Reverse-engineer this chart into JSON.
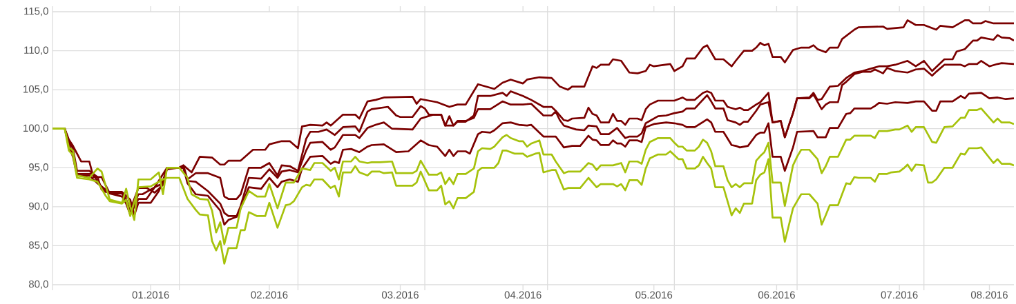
{
  "chart_data": {
    "type": "line",
    "grid": true,
    "xlim": [
      "2016-01-01",
      "2016-08-23"
    ],
    "ylim": [
      80,
      115
    ],
    "yticks": [
      {
        "value": 80,
        "label": "80,0"
      },
      {
        "value": 85,
        "label": "85,0"
      },
      {
        "value": 90,
        "label": "90,0"
      },
      {
        "value": 95,
        "label": "95,0"
      },
      {
        "value": 100,
        "label": "100,0"
      },
      {
        "value": 105,
        "label": "105,0"
      },
      {
        "value": 110,
        "label": "110,0"
      },
      {
        "value": 115,
        "label": "115,0"
      }
    ],
    "xticks": [
      {
        "value": "2016-01-01",
        "label": null
      },
      {
        "value": "2016-02-01",
        "label": null
      },
      {
        "value": "2016-03-01",
        "label": null
      },
      {
        "value": "2016-04-01",
        "label": null
      },
      {
        "value": "2016-05-01",
        "label": null
      },
      {
        "value": "2016-06-01",
        "label": null
      },
      {
        "value": "2016-07-01",
        "label": null
      },
      {
        "value": "2016-08-01",
        "label": null
      },
      {
        "value": "2016-01-25",
        "label": "01.2016"
      },
      {
        "value": "2016-02-23",
        "label": "02.2016"
      },
      {
        "value": "2016-03-26",
        "label": "03.2016"
      },
      {
        "value": "2016-04-25",
        "label": "04.2016"
      },
      {
        "value": "2016-05-27",
        "label": "05.2016"
      },
      {
        "value": "2016-06-26",
        "label": "06.2016"
      },
      {
        "value": "2016-07-26",
        "label": "07.2016"
      },
      {
        "value": "2016-08-17",
        "label": "08.2016"
      }
    ],
    "series": [
      {
        "color": "#7b0000",
        "x": [
          "2016-01-01",
          "2016-01-04",
          "2016-01-05",
          "2016-01-06",
          "2016-01-08",
          "2016-01-10",
          "2016-01-11",
          "2016-01-13",
          "2016-01-15",
          "2016-01-18",
          "2016-01-19",
          "2016-01-20",
          "2016-01-22",
          "2016-01-24",
          "2016-01-26",
          "2016-01-28",
          "2016-01-29",
          "2016-02-01",
          "2016-02-02",
          "2016-02-04",
          "2016-02-06",
          "2016-02-09",
          "2016-02-11",
          "2016-02-12",
          "2016-02-13",
          "2016-02-16",
          "2016-02-19",
          "2016-02-22",
          "2016-02-23",
          "2016-02-26",
          "2016-02-28",
          "2016-03-01",
          "2016-03-02",
          "2016-03-04",
          "2016-03-07",
          "2016-03-08",
          "2016-03-09",
          "2016-03-12",
          "2016-03-15",
          "2016-03-16",
          "2016-03-18",
          "2016-03-20",
          "2016-03-22",
          "2016-03-29",
          "2016-03-30",
          "2016-03-31",
          "2016-04-04",
          "2016-04-07",
          "2016-04-09",
          "2016-04-11",
          "2016-04-14",
          "2016-04-16",
          "2016-04-18",
          "2016-04-20",
          "2016-04-22",
          "2016-04-25",
          "2016-04-26",
          "2016-04-29",
          "2016-05-02",
          "2016-05-04",
          "2016-05-06",
          "2016-05-07",
          "2016-05-10",
          "2016-05-12",
          "2016-05-13",
          "2016-05-14",
          "2016-05-16",
          "2016-05-17",
          "2016-05-19",
          "2016-05-21",
          "2016-05-23",
          "2016-05-25",
          "2016-05-26",
          "2016-05-27",
          "2016-05-31",
          "2016-06-01",
          "2016-06-03",
          "2016-06-04",
          "2016-06-06",
          "2016-06-08",
          "2016-06-09",
          "2016-06-11",
          "2016-06-13",
          "2016-06-15",
          "2016-06-16",
          "2016-06-18",
          "2016-06-20",
          "2016-06-21",
          "2016-06-22",
          "2016-06-23",
          "2016-06-24",
          "2016-06-25",
          "2016-06-27",
          "2016-06-28",
          "2016-06-30",
          "2016-07-02",
          "2016-07-04",
          "2016-07-05",
          "2016-07-06",
          "2016-07-08",
          "2016-07-09",
          "2016-07-11",
          "2016-07-12",
          "2016-07-15",
          "2016-07-16",
          "2016-07-22",
          "2016-07-23",
          "2016-07-27",
          "2016-07-28",
          "2016-07-30",
          "2016-08-01",
          "2016-08-02",
          "2016-08-04",
          "2016-08-05",
          "2016-08-08",
          "2016-08-11",
          "2016-08-12",
          "2016-08-13",
          "2016-08-15",
          "2016-08-16",
          "2016-08-18",
          "2016-08-23"
        ],
        "values": [
          100,
          100,
          98.6,
          97.8,
          95.8,
          95.8,
          93.8,
          93.8,
          91.7,
          91.7,
          90.8,
          89.6,
          92.4,
          92.4,
          91.8,
          92.8,
          95.0,
          95.0,
          95.3,
          94.4,
          96.4,
          96.3,
          95.4,
          95.4,
          95.9,
          95.9,
          97.3,
          97.3,
          98.0,
          98.4,
          98.4,
          97.5,
          100.3,
          100.5,
          100.4,
          100.8,
          100.4,
          101.8,
          101.8,
          101.3,
          103.5,
          103.7,
          104.0,
          104.1,
          103.2,
          103.8,
          103.4,
          102.8,
          103.1,
          103.1,
          105.7,
          105.4,
          105.1,
          105.9,
          106.3,
          105.8,
          106.3,
          106.6,
          106.5,
          105.4,
          105.0,
          105.4,
          105.4,
          108.0,
          107.8,
          108.2,
          108.2,
          108.9,
          108.7,
          107.2,
          107.1,
          107.4,
          108.2,
          108.0,
          108.3,
          107.4,
          108.0,
          109.0,
          109.0,
          110.4,
          110.7,
          108.9,
          108.9,
          108.0,
          108.7,
          110.0,
          110.0,
          110.4,
          111.0,
          110.7,
          110.9,
          109.2,
          109.2,
          108.5,
          110.1,
          110.4,
          110.4,
          110.7,
          110.2,
          109.8,
          110.4,
          110.4,
          111.5,
          112.7,
          113.0,
          113.1,
          112.8,
          113.0,
          113.9,
          113.3,
          113.3,
          113.1,
          112.7,
          113.2,
          113.0,
          113.9,
          113.9,
          113.5,
          113.5,
          113.8,
          113.5,
          113.5
        ]
      },
      {
        "color": "#7b0000",
        "x": [
          "2016-01-01",
          "2016-01-04",
          "2016-01-05",
          "2016-01-06",
          "2016-01-07",
          "2016-01-10",
          "2016-01-12",
          "2016-01-13",
          "2016-01-15",
          "2016-01-18",
          "2016-01-19",
          "2016-01-20",
          "2016-01-22",
          "2016-01-23",
          "2016-01-26",
          "2016-01-28",
          "2016-01-29",
          "2016-02-01",
          "2016-02-02",
          "2016-02-03",
          "2016-02-05",
          "2016-02-08",
          "2016-02-11",
          "2016-02-12",
          "2016-02-13",
          "2016-02-15",
          "2016-02-16",
          "2016-02-18",
          "2016-02-21",
          "2016-02-23",
          "2016-02-25",
          "2016-02-26",
          "2016-02-28",
          "2016-03-01",
          "2016-03-03",
          "2016-03-04",
          "2016-03-06",
          "2016-03-08",
          "2016-03-10",
          "2016-03-12",
          "2016-03-15",
          "2016-03-16",
          "2016-03-18",
          "2016-03-19",
          "2016-03-23",
          "2016-03-25",
          "2016-03-26",
          "2016-03-29",
          "2016-03-31",
          "2016-04-01",
          "2016-04-02",
          "2016-04-05",
          "2016-04-06",
          "2016-04-07",
          "2016-04-08",
          "2016-04-09",
          "2016-04-11",
          "2016-04-13",
          "2016-04-14",
          "2016-04-17",
          "2016-04-20",
          "2016-04-21",
          "2016-04-22",
          "2016-04-25",
          "2016-04-27",
          "2016-04-30",
          "2016-05-02",
          "2016-05-03",
          "2016-05-05",
          "2016-05-06",
          "2016-05-07",
          "2016-05-10",
          "2016-05-11",
          "2016-05-12",
          "2016-05-13",
          "2016-05-14",
          "2016-05-16",
          "2016-05-17",
          "2016-05-18",
          "2016-05-19",
          "2016-05-20",
          "2016-05-21",
          "2016-05-23",
          "2016-05-24",
          "2016-05-25",
          "2016-05-26",
          "2016-05-28",
          "2016-06-01",
          "2016-06-03",
          "2016-06-04",
          "2016-06-06",
          "2016-06-08",
          "2016-06-09",
          "2016-06-10",
          "2016-06-11",
          "2016-06-13",
          "2016-06-14",
          "2016-06-16",
          "2016-06-17",
          "2016-06-18",
          "2016-06-19",
          "2016-06-21",
          "2016-06-22",
          "2016-06-24",
          "2016-06-25",
          "2016-06-27",
          "2016-06-28",
          "2016-06-30",
          "2016-07-01",
          "2016-07-04",
          "2016-07-05",
          "2016-07-06",
          "2016-07-07",
          "2016-07-09",
          "2016-07-11",
          "2016-07-13",
          "2016-07-15",
          "2016-07-17",
          "2016-07-19",
          "2016-07-21",
          "2016-07-23",
          "2016-07-25",
          "2016-07-28",
          "2016-07-30",
          "2016-08-01",
          "2016-08-03",
          "2016-08-06",
          "2016-08-08",
          "2016-08-09",
          "2016-08-11",
          "2016-08-13",
          "2016-08-14",
          "2016-08-15",
          "2016-08-18",
          "2016-08-19",
          "2016-08-20",
          "2016-08-22",
          "2016-08-23"
        ],
        "values": [
          100,
          100,
          98.3,
          97.5,
          94.6,
          94.6,
          93.8,
          92.2,
          91.7,
          91.7,
          91.0,
          89.1,
          91.6,
          91.6,
          92.5,
          93.0,
          95.0,
          95.0,
          95.3,
          93.5,
          94.3,
          94.3,
          93.7,
          91.3,
          91.0,
          91.0,
          91.6,
          95.0,
          95.0,
          95.6,
          94.0,
          95.3,
          95.2,
          94.6,
          98.7,
          99.6,
          99.6,
          99.9,
          99.2,
          100.2,
          100.3,
          99.6,
          102.2,
          102.5,
          102.8,
          101.7,
          101.5,
          101.5,
          102.9,
          102.6,
          101.8,
          101.8,
          100.4,
          101.6,
          100.4,
          100.9,
          100.9,
          101.7,
          104.2,
          104.2,
          104.6,
          104.2,
          104.8,
          104.2,
          103.7,
          102.8,
          102.8,
          102.3,
          101.1,
          101.0,
          101.3,
          101.4,
          102.7,
          101.9,
          101.7,
          100.8,
          100.8,
          101.9,
          101.0,
          101.0,
          100.5,
          101.3,
          101.3,
          101.1,
          102.5,
          103.1,
          103.6,
          103.6,
          104.0,
          103.7,
          103.7,
          104.6,
          104.8,
          104.6,
          103.6,
          103.6,
          102.8,
          102.5,
          102.7,
          102.4,
          102.4,
          103.1,
          103.4,
          104.6,
          100.8,
          101.0,
          98.9,
          102.0,
          103.9,
          104.0,
          104.6,
          103.7,
          103.8,
          105.4,
          105.5,
          106.5,
          107.2,
          107.4,
          107.7,
          108.0,
          108.0,
          108.2,
          108.7,
          108.0,
          108.7,
          107.4,
          108.9,
          108.9,
          109.9,
          110.2,
          111.3,
          111.3,
          111.7,
          111.4,
          112.0,
          111.7,
          111.6,
          111.3
        ]
      },
      {
        "color": "#7b0000",
        "x": [
          "2016-01-01",
          "2016-01-04",
          "2016-01-05",
          "2016-01-06",
          "2016-01-07",
          "2016-01-11",
          "2016-01-12",
          "2016-01-14",
          "2016-01-18",
          "2016-01-20",
          "2016-01-21",
          "2016-01-22",
          "2016-01-25",
          "2016-01-27",
          "2016-01-29",
          "2016-02-01",
          "2016-02-02",
          "2016-02-03",
          "2016-02-05",
          "2016-02-08",
          "2016-02-11",
          "2016-02-12",
          "2016-02-13",
          "2016-02-15",
          "2016-02-16",
          "2016-02-18",
          "2016-02-21",
          "2016-02-23",
          "2016-02-25",
          "2016-02-26",
          "2016-02-28",
          "2016-03-01",
          "2016-03-03",
          "2016-03-04",
          "2016-03-07",
          "2016-03-09",
          "2016-03-10",
          "2016-03-12",
          "2016-03-15",
          "2016-03-16",
          "2016-03-18",
          "2016-03-20",
          "2016-03-22",
          "2016-03-24",
          "2016-03-29",
          "2016-03-31",
          "2016-04-03",
          "2016-04-05",
          "2016-04-06",
          "2016-04-08",
          "2016-04-09",
          "2016-04-11",
          "2016-04-13",
          "2016-04-14",
          "2016-04-17",
          "2016-04-20",
          "2016-04-22",
          "2016-04-25",
          "2016-04-27",
          "2016-04-30",
          "2016-05-02",
          "2016-05-03",
          "2016-05-04",
          "2016-05-05",
          "2016-05-08",
          "2016-05-10",
          "2016-05-11",
          "2016-05-13",
          "2016-05-14",
          "2016-05-16",
          "2016-05-18",
          "2016-05-20",
          "2016-05-21",
          "2016-05-23",
          "2016-05-24",
          "2016-05-25",
          "2016-05-28",
          "2016-05-30",
          "2016-06-01",
          "2016-06-03",
          "2016-06-04",
          "2016-06-06",
          "2016-06-09",
          "2016-06-10",
          "2016-06-11",
          "2016-06-13",
          "2016-06-14",
          "2016-06-16",
          "2016-06-17",
          "2016-06-18",
          "2016-06-19",
          "2016-06-21",
          "2016-06-22",
          "2016-06-24",
          "2016-06-25",
          "2016-06-27",
          "2016-06-28",
          "2016-06-30",
          "2016-07-01",
          "2016-07-04",
          "2016-07-05",
          "2016-07-07",
          "2016-07-08",
          "2016-07-09",
          "2016-07-11",
          "2016-07-12",
          "2016-07-13",
          "2016-07-15",
          "2016-07-17",
          "2016-07-19",
          "2016-07-20",
          "2016-07-22",
          "2016-07-23",
          "2016-07-25",
          "2016-07-28",
          "2016-07-30",
          "2016-08-01",
          "2016-08-03",
          "2016-08-04",
          "2016-08-06",
          "2016-08-10",
          "2016-08-11",
          "2016-08-12",
          "2016-08-14",
          "2016-08-15",
          "2016-08-17",
          "2016-08-19",
          "2016-08-20",
          "2016-08-23"
        ],
        "values": [
          100,
          100,
          98.0,
          96.8,
          94.2,
          94.2,
          93.2,
          91.9,
          91.9,
          90.9,
          88.9,
          90.5,
          90.5,
          92.0,
          94.8,
          95.0,
          95.0,
          93.3,
          93.2,
          92.0,
          90.4,
          89.2,
          88.8,
          88.8,
          90.1,
          93.7,
          93.6,
          94.8,
          93.7,
          94.5,
          94.7,
          94.4,
          97.2,
          98.2,
          98.3,
          97.3,
          97.6,
          99.2,
          99.2,
          98.8,
          100.1,
          100.5,
          100.8,
          100.0,
          99.9,
          101.3,
          101.8,
          101.8,
          100.4,
          100.4,
          101.0,
          101.0,
          101.4,
          102.5,
          102.5,
          103.5,
          103.1,
          103.1,
          103.2,
          101.7,
          101.7,
          102.2,
          101.1,
          100.4,
          99.9,
          99.8,
          100.4,
          100.3,
          99.3,
          99.3,
          100.1,
          98.8,
          99.0,
          99.0,
          99.4,
          100.7,
          101.6,
          101.7,
          102.0,
          102.2,
          102.6,
          102.6,
          104.3,
          103.5,
          102.6,
          102.6,
          101.1,
          100.8,
          100.5,
          100.9,
          100.9,
          102.3,
          103.1,
          103.4,
          100.8,
          101.0,
          98.9,
          102.0,
          103.9,
          103.9,
          104.4,
          102.5,
          103.1,
          103.4,
          103.4,
          105.6,
          106.0,
          107.0,
          107.3,
          107.3,
          107.6,
          107.1,
          107.8,
          107.4,
          107.2,
          107.6,
          107.7,
          106.8,
          107.3,
          108.2,
          108.2,
          108.0,
          108.3,
          108.3,
          108.7,
          108.0,
          108.3,
          108.4,
          108.3
        ]
      },
      {
        "color": "#7b0000",
        "x": [
          "2016-01-01",
          "2016-01-04",
          "2016-01-05",
          "2016-01-06",
          "2016-01-07",
          "2016-01-10",
          "2016-01-12",
          "2016-01-14",
          "2016-01-15",
          "2016-01-18",
          "2016-01-19",
          "2016-01-20",
          "2016-01-22",
          "2016-01-24",
          "2016-01-26",
          "2016-01-29",
          "2016-02-01",
          "2016-02-02",
          "2016-02-03",
          "2016-02-05",
          "2016-02-08",
          "2016-02-11",
          "2016-02-12",
          "2016-02-13",
          "2016-02-15",
          "2016-02-16",
          "2016-02-18",
          "2016-02-21",
          "2016-02-23",
          "2016-02-25",
          "2016-02-26",
          "2016-02-28",
          "2016-03-01",
          "2016-03-02",
          "2016-03-04",
          "2016-03-07",
          "2016-03-09",
          "2016-03-10",
          "2016-03-11",
          "2016-03-12",
          "2016-03-14",
          "2016-03-16",
          "2016-03-18",
          "2016-03-19",
          "2016-03-22",
          "2016-03-25",
          "2016-03-28",
          "2016-03-31",
          "2016-04-02",
          "2016-04-04",
          "2016-04-06",
          "2016-04-07",
          "2016-04-08",
          "2016-04-09",
          "2016-04-11",
          "2016-04-12",
          "2016-04-14",
          "2016-04-15",
          "2016-04-17",
          "2016-04-18",
          "2016-04-20",
          "2016-04-22",
          "2016-04-24",
          "2016-04-26",
          "2016-04-27",
          "2016-04-30",
          "2016-05-02",
          "2016-05-03",
          "2016-05-05",
          "2016-05-07",
          "2016-05-09",
          "2016-05-11",
          "2016-05-12",
          "2016-05-13",
          "2016-05-14",
          "2016-05-16",
          "2016-05-17",
          "2016-05-18",
          "2016-05-19",
          "2016-05-20",
          "2016-05-21",
          "2016-05-23",
          "2016-05-24",
          "2016-05-25",
          "2016-05-27",
          "2016-05-30",
          "2016-06-01",
          "2016-06-03",
          "2016-06-04",
          "2016-06-06",
          "2016-06-09",
          "2016-06-10",
          "2016-06-11",
          "2016-06-13",
          "2016-06-15",
          "2016-06-16",
          "2016-06-17",
          "2016-06-19",
          "2016-06-21",
          "2016-06-22",
          "2016-06-23",
          "2016-06-24",
          "2016-06-25",
          "2016-06-27",
          "2016-06-28",
          "2016-06-30",
          "2016-07-01",
          "2016-07-05",
          "2016-07-06",
          "2016-07-08",
          "2016-07-09",
          "2016-07-11",
          "2016-07-13",
          "2016-07-14",
          "2016-07-15",
          "2016-07-19",
          "2016-07-20",
          "2016-07-21",
          "2016-07-23",
          "2016-07-25",
          "2016-07-28",
          "2016-07-30",
          "2016-08-01",
          "2016-08-03",
          "2016-08-04",
          "2016-08-05",
          "2016-08-08",
          "2016-08-10",
          "2016-08-11",
          "2016-08-12",
          "2016-08-15",
          "2016-08-17",
          "2016-08-19",
          "2016-08-21",
          "2016-08-23"
        ],
        "values": [
          100,
          100,
          97.8,
          96.4,
          94.0,
          94.0,
          93.0,
          92.2,
          91.7,
          91.3,
          90.4,
          89.0,
          91.0,
          91.0,
          92.5,
          95.0,
          95.0,
          95.0,
          93.0,
          91.6,
          91.4,
          89.5,
          87.7,
          88.3,
          88.7,
          89.8,
          92.5,
          92.3,
          93.7,
          92.5,
          93.2,
          93.5,
          93.2,
          94.9,
          96.4,
          96.5,
          95.5,
          95.8,
          95.6,
          97.3,
          97.4,
          97.0,
          97.7,
          97.9,
          98.0,
          97.0,
          97.1,
          98.5,
          97.9,
          97.7,
          96.5,
          97.3,
          96.5,
          97.1,
          97.1,
          96.8,
          99.3,
          99.6,
          99.5,
          99.8,
          100.7,
          100.8,
          100.5,
          100.4,
          100.5,
          99.0,
          99.0,
          99.0,
          97.6,
          97.8,
          97.8,
          99.1,
          98.6,
          98.5,
          97.9,
          97.9,
          98.5,
          98.1,
          98.1,
          97.7,
          98.5,
          98.5,
          98.3,
          100.2,
          100.6,
          100.8,
          100.7,
          100.5,
          100.2,
          100.2,
          101.2,
          100.8,
          99.6,
          99.6,
          97.9,
          97.8,
          97.6,
          97.8,
          99.2,
          99.5,
          99.5,
          100.7,
          96.4,
          96.4,
          94.6,
          97.6,
          99.6,
          99.7,
          98.9,
          98.9,
          100.1,
          100.1,
          101.9,
          102.0,
          102.6,
          102.6,
          102.9,
          103.3,
          103.2,
          103.4,
          103.3,
          103.5,
          103.5,
          102.3,
          102.3,
          103.5,
          103.5,
          104.2,
          103.9,
          104.5,
          104.6,
          103.9,
          104.0,
          103.8,
          103.9
        ]
      },
      {
        "color": "#a6c20c",
        "x": [
          "2016-01-01",
          "2016-01-04",
          "2016-01-05",
          "2016-01-06",
          "2016-01-07",
          "2016-01-10",
          "2016-01-12",
          "2016-01-13",
          "2016-01-15",
          "2016-01-18",
          "2016-01-19",
          "2016-01-20",
          "2016-01-21",
          "2016-01-22",
          "2016-01-25",
          "2016-01-27",
          "2016-01-28",
          "2016-01-29",
          "2016-02-01",
          "2016-02-03",
          "2016-02-04",
          "2016-02-06",
          "2016-02-08",
          "2016-02-09",
          "2016-02-10",
          "2016-02-11",
          "2016-02-12",
          "2016-02-13",
          "2016-02-15",
          "2016-02-16",
          "2016-02-18",
          "2016-02-20",
          "2016-02-22",
          "2016-02-23",
          "2016-02-25",
          "2016-02-27",
          "2016-02-29",
          "2016-03-02",
          "2016-03-04",
          "2016-03-05",
          "2016-03-07",
          "2016-03-09",
          "2016-03-10",
          "2016-03-11",
          "2016-03-12",
          "2016-03-14",
          "2016-03-15",
          "2016-03-16",
          "2016-03-18",
          "2016-03-19",
          "2016-03-21",
          "2016-03-24",
          "2016-03-25",
          "2016-03-29",
          "2016-03-30",
          "2016-03-31",
          "2016-04-02",
          "2016-04-04",
          "2016-04-05",
          "2016-04-06",
          "2016-04-07",
          "2016-04-08",
          "2016-04-09",
          "2016-04-11",
          "2016-04-13",
          "2016-04-14",
          "2016-04-15",
          "2016-04-17",
          "2016-04-18",
          "2016-04-20",
          "2016-04-21",
          "2016-04-22",
          "2016-04-24",
          "2016-04-25",
          "2016-04-26",
          "2016-04-27",
          "2016-04-29",
          "2016-04-30",
          "2016-05-02",
          "2016-05-03",
          "2016-05-05",
          "2016-05-06",
          "2016-05-09",
          "2016-05-11",
          "2016-05-12",
          "2016-05-13",
          "2016-05-14",
          "2016-05-17",
          "2016-05-19",
          "2016-05-20",
          "2016-05-21",
          "2016-05-23",
          "2016-05-24",
          "2016-05-25",
          "2016-05-26",
          "2016-05-28",
          "2016-05-31",
          "2016-06-01",
          "2016-06-02",
          "2016-06-03",
          "2016-06-04",
          "2016-06-06",
          "2016-06-07",
          "2016-06-08",
          "2016-06-09",
          "2016-06-10",
          "2016-06-11",
          "2016-06-13",
          "2016-06-14",
          "2016-06-15",
          "2016-06-16",
          "2016-06-17",
          "2016-06-18",
          "2016-06-20",
          "2016-06-21",
          "2016-06-22",
          "2016-06-23",
          "2016-06-24",
          "2016-06-25",
          "2016-06-27",
          "2016-06-28",
          "2016-06-30",
          "2016-07-01",
          "2016-07-02",
          "2016-07-04",
          "2016-07-06",
          "2016-07-07",
          "2016-07-08",
          "2016-07-09",
          "2016-07-11",
          "2016-07-13",
          "2016-07-14",
          "2016-07-15",
          "2016-07-19",
          "2016-07-20",
          "2016-07-21",
          "2016-07-23",
          "2016-07-25",
          "2016-07-26",
          "2016-07-28",
          "2016-07-29",
          "2016-07-30",
          "2016-08-01",
          "2016-08-03",
          "2016-08-04",
          "2016-08-06",
          "2016-08-08",
          "2016-08-10",
          "2016-08-11",
          "2016-08-12",
          "2016-08-14",
          "2016-08-15",
          "2016-08-18",
          "2016-08-19",
          "2016-08-20",
          "2016-08-22",
          "2016-08-23"
        ],
        "values": [
          100,
          100,
          97.6,
          97.2,
          94.0,
          93.7,
          94.9,
          94.5,
          90.9,
          90.5,
          92.3,
          90.0,
          88.3,
          93.5,
          93.5,
          94.4,
          91.6,
          95.0,
          95.0,
          93.7,
          91.6,
          91.0,
          90.9,
          89.5,
          86.7,
          88.0,
          85.2,
          87.3,
          87.3,
          89.8,
          92.0,
          91.3,
          91.3,
          92.9,
          89.8,
          93.1,
          93.1,
          94.9,
          94.7,
          95.6,
          95.6,
          94.6,
          95.0,
          93.5,
          95.8,
          95.8,
          96.4,
          95.8,
          95.6,
          95.7,
          95.7,
          95.8,
          94.3,
          94.3,
          94.6,
          95.9,
          94.1,
          94.1,
          94.4,
          92.9,
          93.7,
          92.9,
          94.2,
          94.2,
          94.9,
          97.1,
          97.5,
          97.4,
          97.7,
          98.9,
          99.2,
          98.8,
          98.4,
          98.4,
          97.7,
          98.1,
          98.5,
          96.7,
          96.7,
          95.8,
          94.3,
          94.5,
          94.5,
          95.6,
          95.4,
          94.7,
          95.3,
          95.3,
          95.6,
          94.4,
          95.8,
          95.8,
          95.5,
          97.3,
          98.3,
          98.8,
          98.8,
          98.2,
          97.7,
          97.7,
          97.2,
          97.2,
          97.7,
          98.6,
          98.2,
          97.1,
          95.2,
          95.2,
          93.4,
          92.5,
          92.9,
          92.5,
          93.0,
          93.0,
          95.9,
          96.5,
          97.0,
          98.2,
          93.1,
          93.1,
          90.1,
          95.3,
          96.4,
          97.3,
          97.3,
          96.1,
          94.3,
          95.2,
          96.4,
          96.4,
          98.6,
          98.6,
          99.1,
          99.1,
          98.8,
          99.7,
          99.7,
          99.9,
          99.9,
          100.4,
          99.6,
          100.2,
          100.2,
          98.3,
          98.2,
          100.2,
          100.3,
          101.4,
          101.4,
          102.4,
          102.4,
          102.6,
          100.8,
          101.3,
          100.8,
          100.8,
          100.6
        ]
      },
      {
        "color": "#a6c20c",
        "x": [
          "2016-01-01",
          "2016-01-04",
          "2016-01-05",
          "2016-01-06",
          "2016-01-07",
          "2016-01-10",
          "2016-01-12",
          "2016-01-14",
          "2016-01-15",
          "2016-01-18",
          "2016-01-19",
          "2016-01-20",
          "2016-01-22",
          "2016-01-25",
          "2016-01-28",
          "2016-01-29",
          "2016-02-01",
          "2016-02-03",
          "2016-02-05",
          "2016-02-06",
          "2016-02-08",
          "2016-02-09",
          "2016-02-10",
          "2016-02-11",
          "2016-02-12",
          "2016-02-13",
          "2016-02-15",
          "2016-02-16",
          "2016-02-17",
          "2016-02-18",
          "2016-02-20",
          "2016-02-22",
          "2016-02-23",
          "2016-02-25",
          "2016-02-27",
          "2016-02-28",
          "2016-02-29",
          "2016-03-02",
          "2016-03-03",
          "2016-03-04",
          "2016-03-05",
          "2016-03-07",
          "2016-03-09",
          "2016-03-10",
          "2016-03-11",
          "2016-03-12",
          "2016-03-14",
          "2016-03-15",
          "2016-03-16",
          "2016-03-18",
          "2016-03-19",
          "2016-03-21",
          "2016-03-22",
          "2016-03-24",
          "2016-03-25",
          "2016-03-29",
          "2016-03-30",
          "2016-03-31",
          "2016-04-02",
          "2016-04-04",
          "2016-04-05",
          "2016-04-06",
          "2016-04-07",
          "2016-04-08",
          "2016-04-09",
          "2016-04-11",
          "2016-04-13",
          "2016-04-14",
          "2016-04-15",
          "2016-04-18",
          "2016-04-19",
          "2016-04-20",
          "2016-04-21",
          "2016-04-23",
          "2016-04-25",
          "2016-04-26",
          "2016-04-28",
          "2016-04-29",
          "2016-04-30",
          "2016-05-02",
          "2016-05-03",
          "2016-05-05",
          "2016-05-06",
          "2016-05-09",
          "2016-05-11",
          "2016-05-13",
          "2016-05-14",
          "2016-05-17",
          "2016-05-18",
          "2016-05-19",
          "2016-05-20",
          "2016-05-21",
          "2016-05-23",
          "2016-05-24",
          "2016-05-25",
          "2016-05-26",
          "2016-05-28",
          "2016-05-30",
          "2016-05-31",
          "2016-06-02",
          "2016-06-03",
          "2016-06-04",
          "2016-06-06",
          "2016-06-07",
          "2016-06-08",
          "2016-06-09",
          "2016-06-10",
          "2016-06-11",
          "2016-06-13",
          "2016-06-14",
          "2016-06-15",
          "2016-06-16",
          "2016-06-17",
          "2016-06-18",
          "2016-06-20",
          "2016-06-21",
          "2016-06-22",
          "2016-06-23",
          "2016-06-24",
          "2016-06-25",
          "2016-06-27",
          "2016-06-28",
          "2016-06-30",
          "2016-07-01",
          "2016-07-02",
          "2016-07-04",
          "2016-07-06",
          "2016-07-07",
          "2016-07-08",
          "2016-07-09",
          "2016-07-11",
          "2016-07-13",
          "2016-07-14",
          "2016-07-15",
          "2016-07-16",
          "2016-07-19",
          "2016-07-20",
          "2016-07-21",
          "2016-07-23",
          "2016-07-24",
          "2016-07-26",
          "2016-07-27",
          "2016-07-28",
          "2016-07-29",
          "2016-07-30",
          "2016-08-01",
          "2016-08-02",
          "2016-08-03",
          "2016-08-04",
          "2016-08-06",
          "2016-08-08",
          "2016-08-10",
          "2016-08-11",
          "2016-08-12",
          "2016-08-14",
          "2016-08-15",
          "2016-08-18",
          "2016-08-19",
          "2016-08-20",
          "2016-08-22",
          "2016-08-23"
        ],
        "values": [
          100,
          100,
          97.2,
          96.6,
          93.7,
          93.5,
          93.2,
          91.4,
          90.7,
          90.4,
          90.9,
          88.8,
          92.5,
          92.6,
          93.5,
          93.7,
          93.7,
          91.0,
          89.6,
          89.0,
          88.9,
          85.6,
          84.4,
          85.6,
          82.7,
          84.7,
          84.7,
          87.0,
          87.0,
          89.3,
          88.8,
          88.8,
          90.5,
          87.3,
          90.2,
          90.3,
          90.7,
          92.5,
          92.8,
          92.7,
          93.5,
          93.5,
          92.4,
          92.7,
          91.3,
          94.4,
          94.4,
          95.2,
          94.4,
          94.0,
          94.5,
          94.5,
          94.3,
          94.4,
          92.7,
          92.7,
          93.1,
          94.5,
          92.1,
          92.1,
          92.7,
          90.3,
          90.7,
          89.8,
          91.1,
          91.1,
          91.9,
          94.6,
          95.0,
          95.0,
          95.6,
          97.2,
          97.2,
          96.8,
          96.8,
          96.4,
          96.8,
          96.9,
          94.4,
          94.7,
          94.7,
          92.2,
          92.4,
          92.4,
          93.7,
          92.5,
          92.9,
          92.9,
          92.6,
          92.9,
          92.1,
          93.4,
          93.4,
          92.8,
          94.9,
          96.2,
          96.7,
          96.7,
          97.1,
          96.1,
          96.1,
          94.9,
          94.9,
          95.3,
          96.4,
          95.6,
          94.9,
          92.5,
          92.5,
          90.7,
          88.9,
          89.8,
          89.2,
          90.4,
          90.4,
          93.4,
          94.1,
          94.4,
          96.1,
          88.6,
          88.6,
          85.5,
          89.8,
          90.7,
          91.6,
          91.6,
          90.4,
          87.7,
          88.9,
          90.2,
          90.2,
          93.0,
          92.9,
          93.8,
          93.7,
          93.7,
          93.2,
          94.2,
          94.2,
          94.4,
          94.5,
          94.9,
          95.4,
          94.6,
          95.4,
          95.3,
          93.1,
          93.1,
          93.5,
          95.0,
          95.0,
          96.8,
          96.7,
          97.5,
          97.5,
          97.6,
          95.6,
          96.1,
          95.5,
          95.5,
          95.3
        ]
      }
    ]
  }
}
